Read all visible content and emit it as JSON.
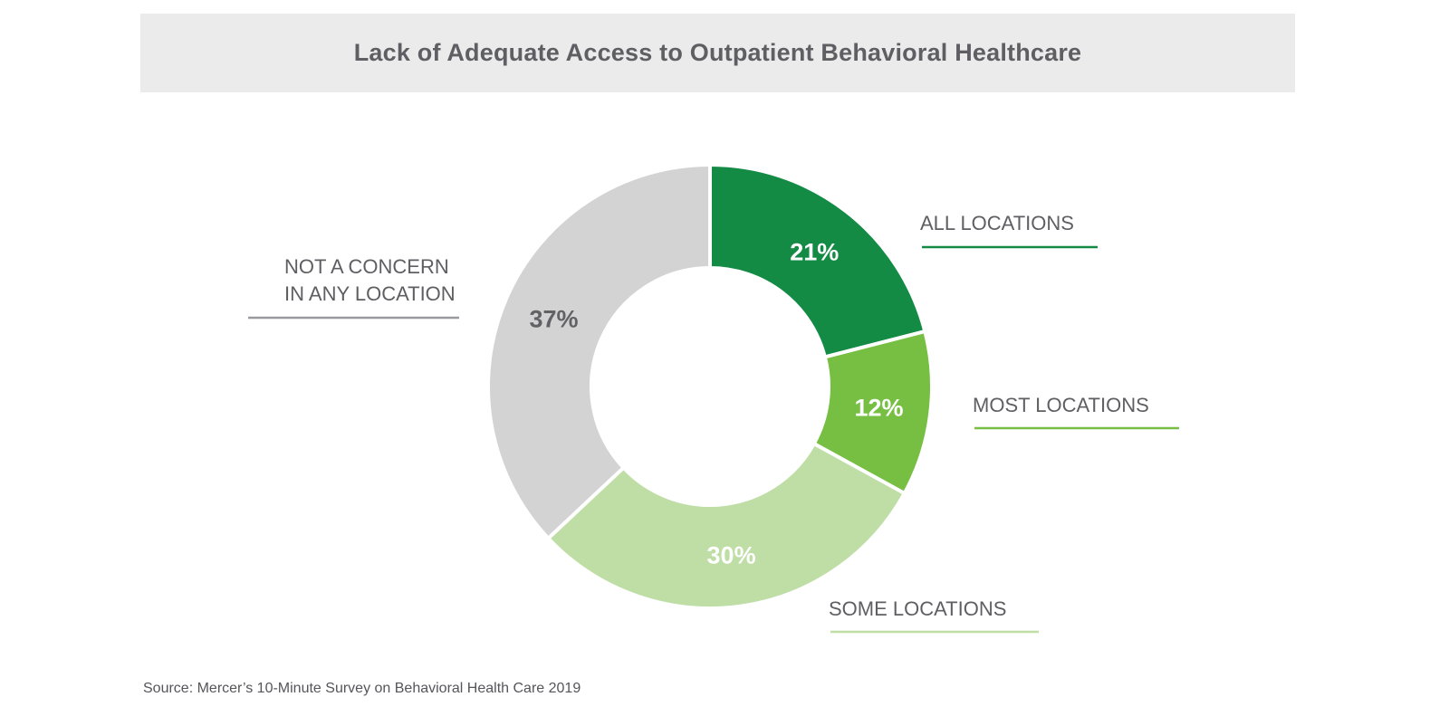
{
  "chart_data": {
    "type": "pie",
    "title": "Lack of Adequate Access to Outpatient Behavioral Healthcare",
    "donut": true,
    "slices": [
      {
        "label": "ALL LOCATIONS",
        "value": 21,
        "value_label": "21%",
        "color": "#138b45",
        "text_color": "#ffffff",
        "label_lines": [
          "ALL LOCATIONS"
        ],
        "underline_color": "#138b45"
      },
      {
        "label": "MOST LOCATIONS",
        "value": 12,
        "value_label": "12%",
        "color": "#76bf43",
        "text_color": "#ffffff",
        "label_lines": [
          "MOST LOCATIONS"
        ],
        "underline_color": "#76bf43"
      },
      {
        "label": "SOME LOCATIONS",
        "value": 30,
        "value_label": "30%",
        "color": "#bfdea6",
        "text_color": "#ffffff",
        "label_lines": [
          "SOME LOCATIONS"
        ],
        "underline_color": "#bfdea6"
      },
      {
        "label": "NOT A CONCERN IN ANY LOCATION",
        "value": 37,
        "value_label": "37%",
        "color": "#d3d3d3",
        "text_color": "#616166",
        "label_lines": [
          "NOT A CONCERN",
          "IN ANY LOCATION"
        ],
        "underline_color": "#9a9a9e"
      }
    ],
    "source": "Source: Mercer’s 10-Minute Survey on Behavioral Health Care 2019"
  }
}
